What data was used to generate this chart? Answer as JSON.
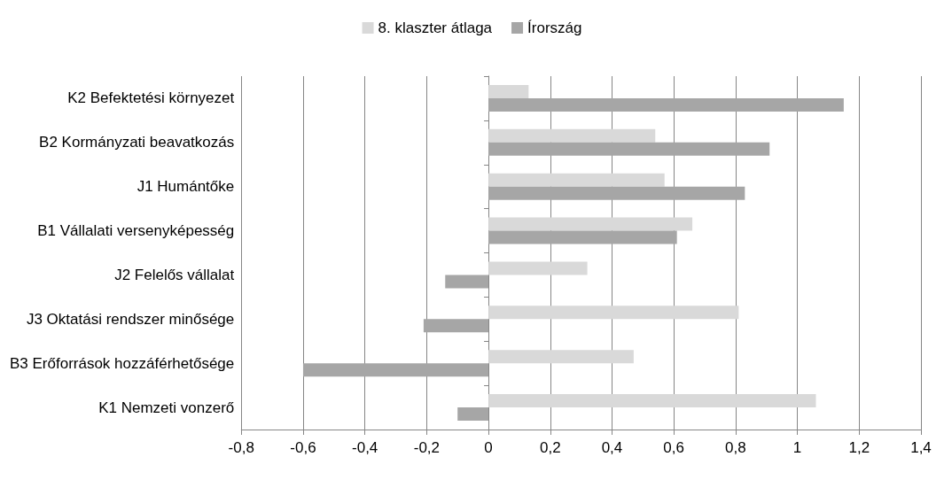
{
  "chart_data": {
    "type": "bar",
    "orientation": "horizontal",
    "categories": [
      "K2 Befektetési környezet",
      "B2 Kormányzati beavatkozás",
      "J1 Humántőke",
      "B1 Vállalati versenyképesség",
      "J2 Felelős vállalat",
      "J3 Oktatási rendszer minősége",
      "B3 Erőforrások hozzáférhetősége",
      "K1 Nemzeti vonzerő"
    ],
    "series": [
      {
        "name": "8. klaszter átlaga",
        "color": "#d9d9d9",
        "values": [
          0.13,
          0.54,
          0.57,
          0.66,
          0.32,
          0.81,
          0.47,
          1.06
        ]
      },
      {
        "name": "Írország",
        "color": "#a6a6a6",
        "values": [
          1.15,
          0.91,
          0.83,
          0.61,
          -0.14,
          -0.21,
          -0.6,
          -0.1
        ]
      }
    ],
    "xlim": [
      -0.8,
      1.4
    ],
    "xticks": [
      {
        "value": -0.8,
        "label": "-0,8"
      },
      {
        "value": -0.6,
        "label": "-0,6"
      },
      {
        "value": -0.4,
        "label": "-0,4"
      },
      {
        "value": -0.2,
        "label": "-0,2"
      },
      0,
      {
        "value": 0.2,
        "label": "0,2"
      },
      {
        "value": 0.4,
        "label": "0,4"
      },
      {
        "value": 0.6,
        "label": "0,6"
      },
      {
        "value": 0.8,
        "label": "0,8"
      },
      1,
      {
        "value": 1.2,
        "label": "1,2"
      },
      {
        "value": 1.4,
        "label": "1,4"
      }
    ],
    "grid": "x",
    "legend": "top"
  }
}
